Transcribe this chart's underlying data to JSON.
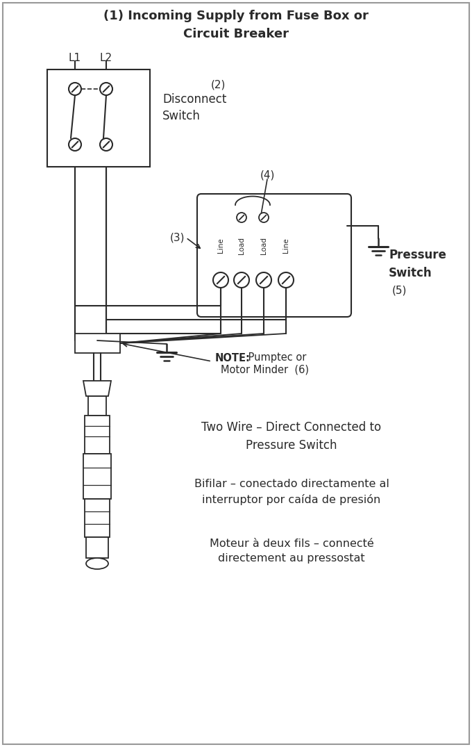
{
  "bg_color": "#ffffff",
  "line_color": "#2a2a2a",
  "text_color": "#2a2a2a",
  "title": "(1) Incoming Supply from Fuse Box or\nCircuit Breaker",
  "L1": "L1",
  "L2": "L2",
  "disconnect_label": "Disconnect\nSwitch",
  "disconnect_num": "(2)",
  "ps_label3": "(3)",
  "ps_label4": "(4)",
  "pressure_switch_label": "Pressure\nSwitch",
  "pressure_switch_num": "(5)",
  "note_bold": "NOTE:",
  "note_rest": " Pumptec or\nMotor Minder  (6)",
  "col_labels": [
    "Line",
    "Load",
    "Load",
    "Line"
  ],
  "desc1": "Two Wire – Direct Connected to\nPressure Switch",
  "desc2": "Bifilar – conectado directamente al\ninterruptor por caída de presión",
  "desc3": "Moteur à deux fils – connecté\ndirectement au pressostat"
}
